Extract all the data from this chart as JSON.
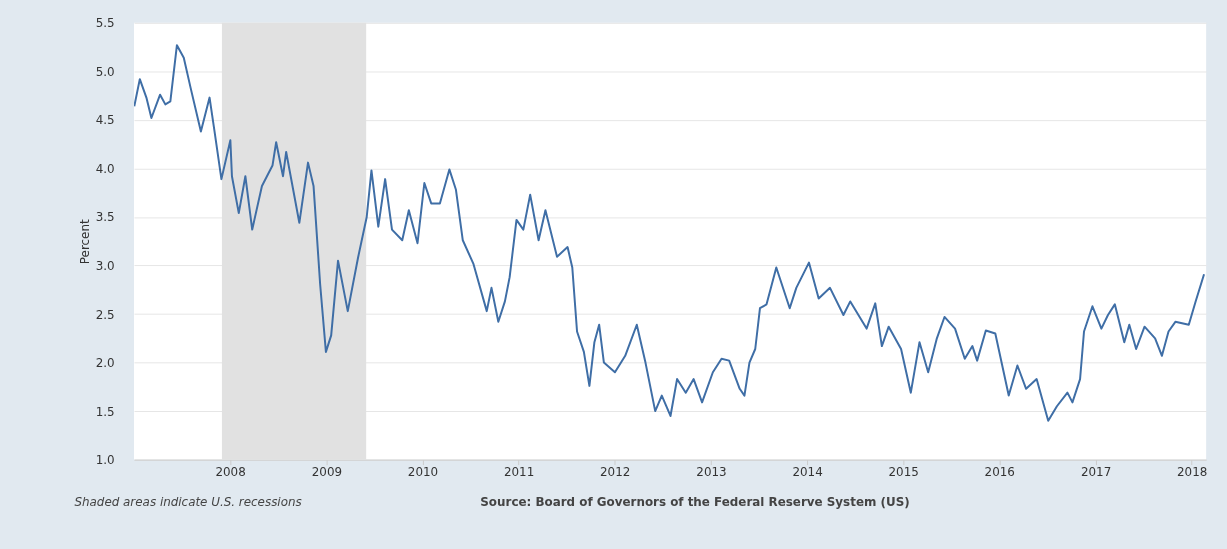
{
  "chart_data": {
    "type": "line",
    "ylabel": "Percent",
    "annotations": [
      "Shaded areas indicate U.S. recessions",
      "Source: Board of Governors of the Federal Reserve System (US)"
    ],
    "x": [
      "2007-01-02",
      "2007-01-23",
      "2007-02-17",
      "2007-03-08",
      "2007-04-10",
      "2007-04-30",
      "2007-05-19",
      "2007-06-13",
      "2007-07-09",
      "2007-08-04",
      "2007-09-12",
      "2007-10-15",
      "2007-11-03",
      "2007-11-29",
      "2008-01-02",
      "2008-01-08",
      "2008-02-03",
      "2008-02-28",
      "2008-03-25",
      "2008-05-01",
      "2008-06-10",
      "2008-06-24",
      "2008-07-20",
      "2008-08-01",
      "2008-09-20",
      "2008-10-23",
      "2008-11-13",
      "2008-12-08",
      "2008-12-30",
      "2009-01-19",
      "2009-02-14",
      "2009-03-23",
      "2009-05-01",
      "2009-06-03",
      "2009-06-21",
      "2009-07-17",
      "2009-08-12",
      "2009-09-07",
      "2009-10-16",
      "2009-11-10",
      "2009-12-13",
      "2010-01-08",
      "2010-02-03",
      "2010-03-08",
      "2010-04-13",
      "2010-05-08",
      "2010-06-03",
      "2010-07-13",
      "2010-09-02",
      "2010-09-20",
      "2010-10-16",
      "2010-11-10",
      "2010-11-28",
      "2010-12-24",
      "2011-01-19",
      "2011-02-14",
      "2011-03-18",
      "2011-04-13",
      "2011-05-27",
      "2011-07-06",
      "2011-07-24",
      "2011-08-11",
      "2011-09-06",
      "2011-09-27",
      "2011-10-16",
      "2011-11-03",
      "2011-11-21",
      "2012-01-02",
      "2012-02-10",
      "2012-03-25",
      "2012-04-27",
      "2012-06-03",
      "2012-06-28",
      "2012-07-31",
      "2012-08-25",
      "2012-09-27",
      "2012-10-27",
      "2012-11-28",
      "2013-01-08",
      "2013-02-10",
      "2013-03-11",
      "2013-04-20",
      "2013-05-08",
      "2013-05-27",
      "2013-06-18",
      "2013-07-06",
      "2013-07-31",
      "2013-09-06",
      "2013-10-27",
      "2013-11-21",
      "2014-01-08",
      "2014-02-14",
      "2014-03-29",
      "2014-05-19",
      "2014-06-14",
      "2014-08-15",
      "2014-09-17",
      "2014-10-12",
      "2014-11-07",
      "2014-12-24",
      "2015-01-30",
      "2015-03-04",
      "2015-04-06",
      "2015-05-09",
      "2015-06-07",
      "2015-07-17",
      "2015-08-23",
      "2015-09-21",
      "2015-10-09",
      "2015-11-11",
      "2015-12-17",
      "2016-02-06",
      "2016-03-10",
      "2016-04-12",
      "2016-05-22",
      "2016-07-05",
      "2016-08-07",
      "2016-09-16",
      "2016-10-05",
      "2016-11-03",
      "2016-11-18",
      "2016-12-20",
      "2017-01-23",
      "2017-02-17",
      "2017-03-15",
      "2017-04-20",
      "2017-05-09",
      "2017-06-04",
      "2017-07-06",
      "2017-08-15",
      "2017-09-10",
      "2017-10-05",
      "2017-10-31",
      "2017-12-21",
      "2018-01-16",
      "2018-02-17"
    ],
    "series": [
      {
        "color": "#3f6ea6",
        "values": [
          4.64,
          4.92,
          4.73,
          4.52,
          4.76,
          4.66,
          4.69,
          5.27,
          5.14,
          4.83,
          4.38,
          4.73,
          4.38,
          3.89,
          4.29,
          3.92,
          3.54,
          3.92,
          3.37,
          3.82,
          4.03,
          4.27,
          3.92,
          4.17,
          3.44,
          4.06,
          3.82,
          2.81,
          2.11,
          2.28,
          3.05,
          2.53,
          3.08,
          3.5,
          3.98,
          3.4,
          3.89,
          3.37,
          3.26,
          3.57,
          3.23,
          3.85,
          3.64,
          3.64,
          3.99,
          3.78,
          3.26,
          3.02,
          2.53,
          2.77,
          2.42,
          2.63,
          2.88,
          3.47,
          3.37,
          3.73,
          3.26,
          3.57,
          3.09,
          3.19,
          2.98,
          2.32,
          2.11,
          1.76,
          2.21,
          2.39,
          2.0,
          1.9,
          2.07,
          2.39,
          2.0,
          1.5,
          1.66,
          1.45,
          1.83,
          1.69,
          1.83,
          1.59,
          1.9,
          2.04,
          2.02,
          1.73,
          1.66,
          2.0,
          2.14,
          2.56,
          2.6,
          2.98,
          2.56,
          2.77,
          3.03,
          2.66,
          2.77,
          2.49,
          2.63,
          2.35,
          2.61,
          2.17,
          2.37,
          2.14,
          1.69,
          2.21,
          1.9,
          2.25,
          2.47,
          2.35,
          2.04,
          2.17,
          2.02,
          2.33,
          2.3,
          1.66,
          1.97,
          1.73,
          1.83,
          1.4,
          1.55,
          1.69,
          1.59,
          1.83,
          2.32,
          2.58,
          2.35,
          2.49,
          2.6,
          2.21,
          2.39,
          2.14,
          2.37,
          2.25,
          2.07,
          2.32,
          2.42,
          2.39,
          2.63,
          2.91
        ]
      }
    ],
    "xlim": [
      "2007-01-01",
      "2018-02-25"
    ],
    "xticks": [
      {
        "value": "2008-01-01",
        "label": "2008"
      },
      {
        "value": "2009-01-01",
        "label": "2009"
      },
      {
        "value": "2010-01-01",
        "label": "2010"
      },
      {
        "value": "2011-01-01",
        "label": "2011"
      },
      {
        "value": "2012-01-01",
        "label": "2012"
      },
      {
        "value": "2013-01-01",
        "label": "2013"
      },
      {
        "value": "2014-01-01",
        "label": "2014"
      },
      {
        "value": "2015-01-01",
        "label": "2015"
      },
      {
        "value": "2016-01-01",
        "label": "2016"
      },
      {
        "value": "2017-01-01",
        "label": "2017"
      },
      {
        "value": "2018-01-01",
        "label": "2018"
      }
    ],
    "ylim": [
      1.0,
      5.5
    ],
    "yticks": [
      {
        "value": 1.0,
        "label": "1.0"
      },
      {
        "value": 1.5,
        "label": "1.5"
      },
      {
        "value": 2.0,
        "label": "2.0"
      },
      {
        "value": 2.5,
        "label": "2.5"
      },
      {
        "value": 3.0,
        "label": "3.0"
      },
      {
        "value": 3.5,
        "label": "3.5"
      },
      {
        "value": 4.0,
        "label": "4.0"
      },
      {
        "value": 4.5,
        "label": "4.5"
      },
      {
        "value": 5.0,
        "label": "5.0"
      },
      {
        "value": 5.5,
        "label": "5.5"
      }
    ],
    "bands": [
      {
        "axis": "x",
        "from": "2007-12-01",
        "to": "2009-06-01",
        "color": "#e1e1e1"
      }
    ],
    "grid": "y"
  }
}
